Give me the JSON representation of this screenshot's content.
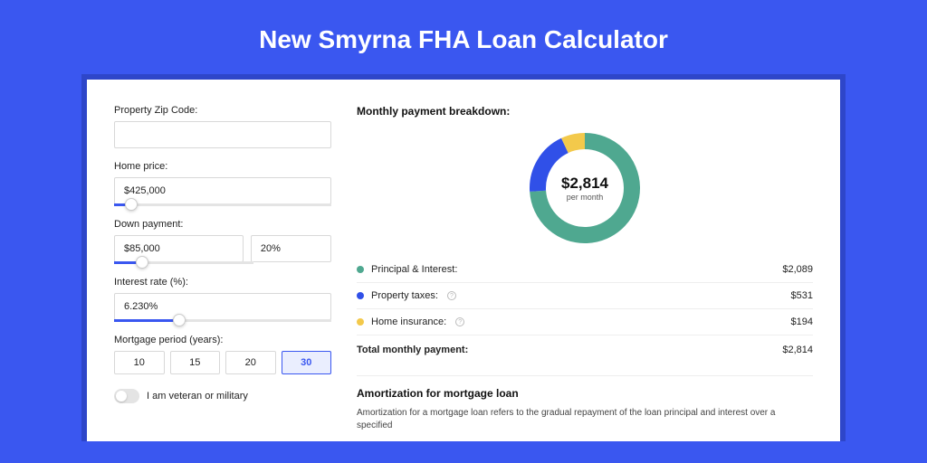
{
  "page": {
    "title": "New Smyrna FHA Loan Calculator",
    "bg_color": "#3a57f0",
    "shadow_color": "#2e46c9",
    "card_bg": "#ffffff"
  },
  "form": {
    "zip": {
      "label": "Property Zip Code:",
      "value": ""
    },
    "home_price": {
      "label": "Home price:",
      "value": "$425,000",
      "slider_pct": 8
    },
    "down_payment": {
      "label": "Down payment:",
      "value": "$85,000",
      "pct_value": "20%",
      "slider_pct": 20
    },
    "interest": {
      "label": "Interest rate (%):",
      "value": "6.230%",
      "slider_pct": 30
    },
    "period": {
      "label": "Mortgage period (years):",
      "options": [
        "10",
        "15",
        "20",
        "30"
      ],
      "selected_index": 3
    },
    "veteran": {
      "label": "I am veteran or military",
      "checked": false
    }
  },
  "breakdown": {
    "title": "Monthly payment breakdown:",
    "donut": {
      "amount": "$2,814",
      "sub": "per month",
      "slices": [
        {
          "color": "#4fa890",
          "pct": 74
        },
        {
          "color": "#3050e8",
          "pct": 19
        },
        {
          "color": "#f3c94b",
          "pct": 7
        }
      ],
      "thickness": 18
    },
    "rows": [
      {
        "dot": "#4fa890",
        "label": "Principal & Interest:",
        "info": false,
        "value": "$2,089"
      },
      {
        "dot": "#3050e8",
        "label": "Property taxes:",
        "info": true,
        "value": "$531"
      },
      {
        "dot": "#f3c94b",
        "label": "Home insurance:",
        "info": true,
        "value": "$194"
      }
    ],
    "total": {
      "label": "Total monthly payment:",
      "value": "$2,814"
    }
  },
  "amortization": {
    "title": "Amortization for mortgage loan",
    "text": "Amortization for a mortgage loan refers to the gradual repayment of the loan principal and interest over a specified"
  }
}
